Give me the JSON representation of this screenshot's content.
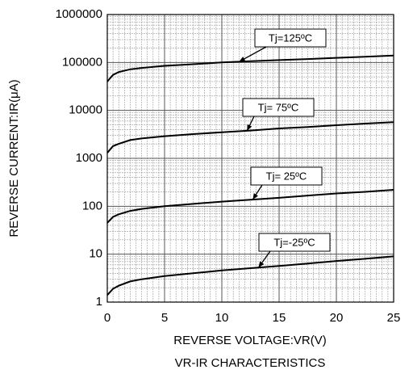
{
  "chart_data": {
    "type": "line",
    "title": "VR-IR CHARACTERISTICS",
    "x_label": "REVERSE VOLTAGE:VR(V)",
    "y_label": "REVERSE CURRENT:IR(μA)",
    "x": [
      0,
      0.5,
      1,
      2,
      3,
      5,
      7.5,
      10,
      12.5,
      15,
      17.5,
      20,
      22.5,
      25
    ],
    "series": [
      {
        "name": "Tj=125ºC",
        "color": "#000000",
        "values": [
          40000,
          55000,
          63000,
          72000,
          77000,
          85000,
          92000,
          100000,
          106000,
          112000,
          118000,
          125000,
          132000,
          140000
        ]
      },
      {
        "name": "Tj= 75ºC",
        "color": "#000000",
        "values": [
          1300,
          1800,
          2000,
          2400,
          2600,
          2900,
          3200,
          3500,
          3800,
          4200,
          4500,
          4900,
          5300,
          5700
        ]
      },
      {
        "name": "Tj= 25ºC",
        "color": "#000000",
        "values": [
          45,
          60,
          68,
          80,
          88,
          100,
          112,
          125,
          137,
          150,
          167,
          185,
          200,
          220
        ]
      },
      {
        "name": "Tj=-25ºC",
        "color": "#000000",
        "values": [
          1.4,
          1.9,
          2.2,
          2.7,
          3.0,
          3.5,
          4.0,
          4.6,
          5.1,
          5.7,
          6.4,
          7.2,
          8.0,
          9.0
        ]
      }
    ],
    "xlim": [
      0,
      25
    ],
    "xticks": [
      0,
      5,
      10,
      15,
      20,
      25
    ],
    "ylim": [
      1,
      1000000
    ],
    "yticks": [
      1,
      10,
      100,
      1000,
      10000,
      100000,
      1000000
    ],
    "y_scale": "log",
    "grid": true
  }
}
